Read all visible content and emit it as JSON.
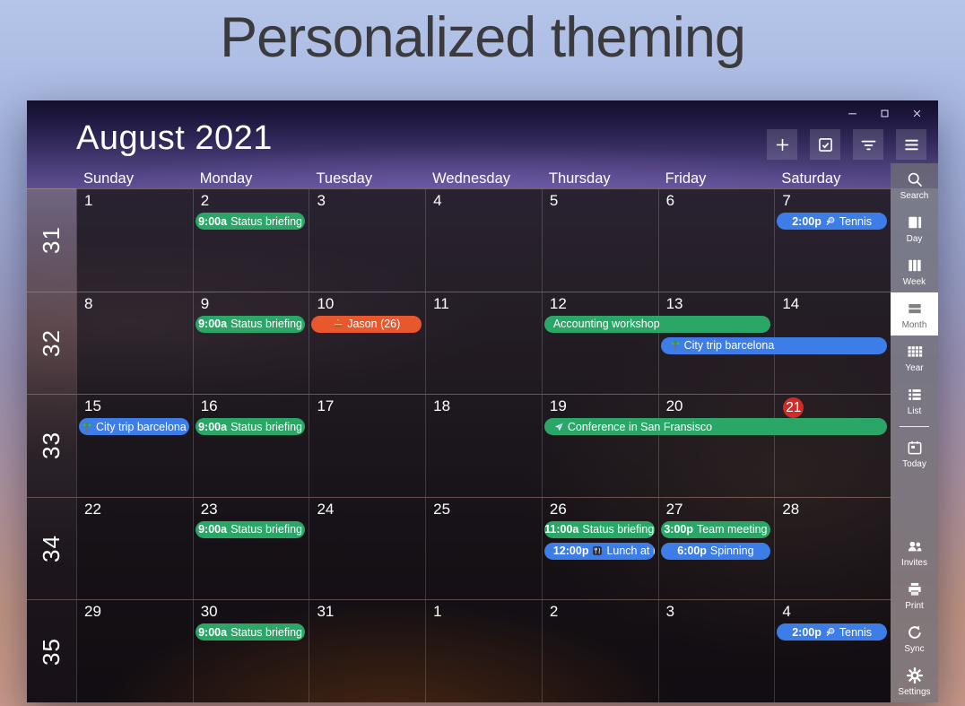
{
  "page_title": "Personalized theming",
  "window": {
    "header": {
      "month_title": "August 2021",
      "day_names": [
        "Sunday",
        "Monday",
        "Tuesday",
        "Wednesday",
        "Thursday",
        "Friday",
        "Saturday"
      ]
    },
    "window_controls": [
      {
        "name": "minimize",
        "icon": "minimize"
      },
      {
        "name": "maximize",
        "icon": "maximize"
      },
      {
        "name": "close",
        "icon": "close"
      }
    ],
    "toolbar": [
      {
        "name": "new-event",
        "icon": "plus"
      },
      {
        "name": "tasks",
        "icon": "check-square"
      },
      {
        "name": "filter",
        "icon": "filter"
      },
      {
        "name": "menu",
        "icon": "menu"
      }
    ],
    "sidebar": [
      {
        "label": "Search",
        "icon": "search"
      },
      {
        "label": "Day",
        "icon": "day"
      },
      {
        "label": "Week",
        "icon": "week"
      },
      {
        "label": "Month",
        "icon": "month",
        "active": true
      },
      {
        "label": "Year",
        "icon": "year"
      },
      {
        "label": "List",
        "icon": "list"
      },
      {
        "divider": true
      },
      {
        "label": "Today",
        "icon": "today"
      },
      {
        "spacer": true
      },
      {
        "label": "Invites",
        "icon": "invites"
      },
      {
        "label": "Print",
        "icon": "print"
      },
      {
        "label": "Sync",
        "icon": "sync"
      },
      {
        "label": "Settings",
        "icon": "gear"
      }
    ],
    "calendar": {
      "weeks": [
        {
          "week_number": "31",
          "dates": [
            "1",
            "2",
            "3",
            "4",
            "5",
            "6",
            "7"
          ],
          "events": [
            {
              "day": 1,
              "span": 1,
              "slot": 0,
              "color": "green",
              "time": "9:00a",
              "title": "Status briefing"
            },
            {
              "day": 6,
              "span": 1,
              "slot": 0,
              "color": "blue",
              "time": "2:00p",
              "icon": "tennis",
              "title": "Tennis"
            }
          ]
        },
        {
          "week_number": "32",
          "dates": [
            "8",
            "9",
            "10",
            "11",
            "12",
            "13",
            "14"
          ],
          "events": [
            {
              "day": 1,
              "span": 1,
              "slot": 0,
              "color": "green",
              "time": "9:00a",
              "title": "Status briefing"
            },
            {
              "day": 2,
              "span": 1,
              "slot": 0,
              "color": "orange",
              "icon": "cake",
              "title": "Jason (26)"
            },
            {
              "day": 4,
              "span": 2,
              "slot": 0,
              "color": "green",
              "title": "Accounting workshop",
              "align": "left"
            },
            {
              "day": 5,
              "span": 2,
              "slot": 1,
              "color": "blue",
              "icon": "palm",
              "title": "City trip barcelona",
              "align": "left"
            }
          ]
        },
        {
          "week_number": "33",
          "dates": [
            "15",
            "16",
            "17",
            "18",
            "19",
            "20",
            "21"
          ],
          "today_index": 6,
          "events": [
            {
              "day": 0,
              "span": 1,
              "slot": 0,
              "color": "blue",
              "icon": "palm",
              "title": "City trip barcelona"
            },
            {
              "day": 1,
              "span": 1,
              "slot": 0,
              "color": "green",
              "time": "9:00a",
              "title": "Status briefing"
            },
            {
              "day": 4,
              "span": 3,
              "slot": 0,
              "color": "green",
              "icon": "plane",
              "title": "Conference in San Fransisco",
              "align": "left"
            }
          ]
        },
        {
          "week_number": "34",
          "dates": [
            "22",
            "23",
            "24",
            "25",
            "26",
            "27",
            "28"
          ],
          "events": [
            {
              "day": 1,
              "span": 1,
              "slot": 0,
              "color": "green",
              "time": "9:00a",
              "title": "Status briefing"
            },
            {
              "day": 4,
              "span": 1,
              "slot": 0,
              "color": "green",
              "time": "11:00a",
              "title": "Status briefing"
            },
            {
              "day": 4,
              "span": 1,
              "slot": 1,
              "color": "blue",
              "time": "12:00p",
              "icon": "utensils",
              "title": "Lunch at Pal",
              "align": "left"
            },
            {
              "day": 5,
              "span": 1,
              "slot": 0,
              "color": "green",
              "time": "3:00p",
              "title": "Team meeting"
            },
            {
              "day": 5,
              "span": 1,
              "slot": 1,
              "color": "blue",
              "time": "6:00p",
              "title": "Spinning"
            }
          ]
        },
        {
          "week_number": "35",
          "dates": [
            "29",
            "30",
            "31",
            "1",
            "2",
            "3",
            "4"
          ],
          "events": [
            {
              "day": 1,
              "span": 1,
              "slot": 0,
              "color": "green",
              "time": "9:00a",
              "title": "Status briefing"
            },
            {
              "day": 6,
              "span": 1,
              "slot": 0,
              "color": "blue",
              "time": "2:00p",
              "icon": "tennis",
              "title": "Tennis"
            }
          ]
        }
      ]
    }
  },
  "colors": {
    "event_green": "#2aa767",
    "event_blue": "#3c7de8",
    "event_orange": "#e8582c",
    "today_red": "#d02b27"
  }
}
